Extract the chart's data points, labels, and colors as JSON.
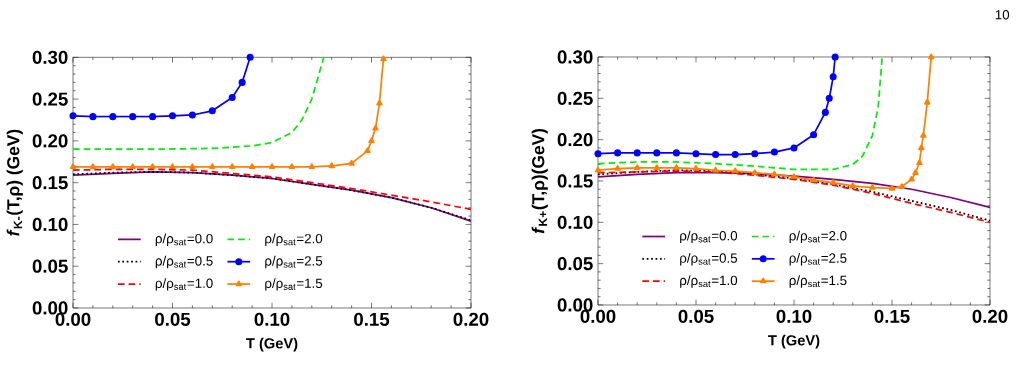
{
  "chart_data": [
    {
      "type": "line",
      "xlabel": "T (GeV)",
      "ylabel": "*f*$_{K-}$(T,ρ) (GeV)",
      "annotations": [
        "10"
      ],
      "xlim": [
        0,
        0.2
      ],
      "ylim": [
        0,
        0.3
      ],
      "xticks": [
        {
          "value": 0,
          "label": "0.00"
        },
        {
          "value": 0.05,
          "label": "0.05"
        },
        {
          "value": 0.1,
          "label": "0.10"
        },
        {
          "value": 0.15,
          "label": "0.15"
        },
        {
          "value": 0.2,
          "label": "0.20"
        }
      ],
      "yticks": [
        {
          "value": 0,
          "label": "0.00"
        },
        {
          "value": 0.05,
          "label": "0.05"
        },
        {
          "value": 0.1,
          "label": "0.10"
        },
        {
          "value": 0.15,
          "label": "0.15"
        },
        {
          "value": 0.2,
          "label": "0.20"
        },
        {
          "value": 0.25,
          "label": "0.25"
        },
        {
          "value": 0.3,
          "label": "0.30"
        }
      ],
      "legend": "bottom left",
      "series": [
        {
          "name": "ρ/ρ$_{sat}$=0.0",
          "color": "#800080",
          "line_style": "solid",
          "marker": "none",
          "x": [
            0,
            0.02,
            0.04,
            0.06,
            0.08,
            0.1,
            0.12,
            0.14,
            0.16,
            0.18,
            0.2
          ],
          "values": [
            0.159,
            0.161,
            0.163,
            0.162,
            0.159,
            0.155,
            0.148,
            0.141,
            0.132,
            0.12,
            0.104
          ]
        },
        {
          "name": "ρ/ρ$_{sat}$=0.5",
          "color": "#000000",
          "line_style": "dotted",
          "marker": "none",
          "x": [
            0,
            0.02,
            0.04,
            0.06,
            0.08,
            0.1,
            0.12,
            0.14,
            0.16,
            0.18,
            0.2
          ],
          "values": [
            0.16,
            0.162,
            0.163,
            0.162,
            0.159,
            0.155,
            0.148,
            0.141,
            0.132,
            0.12,
            0.105
          ]
        },
        {
          "name": "ρ/ρ$_{sat}$=1.0",
          "color": "#ff0000",
          "line_style": "dashed",
          "marker": "none",
          "x": [
            0,
            0.02,
            0.04,
            0.06,
            0.08,
            0.1,
            0.12,
            0.14,
            0.16,
            0.18,
            0.2
          ],
          "values": [
            0.165,
            0.166,
            0.166,
            0.165,
            0.161,
            0.157,
            0.15,
            0.143,
            0.135,
            0.127,
            0.118
          ]
        },
        {
          "name": "ρ/ρ$_{sat}$=1.5",
          "color": "#ff8000",
          "line_style": "solid",
          "marker": "triangle",
          "x": [
            0,
            0.01,
            0.02,
            0.03,
            0.04,
            0.05,
            0.06,
            0.07,
            0.08,
            0.09,
            0.1,
            0.11,
            0.12,
            0.13,
            0.14,
            0.148,
            0.15,
            0.152,
            0.154,
            0.156
          ],
          "values": [
            0.169,
            0.169,
            0.169,
            0.169,
            0.169,
            0.169,
            0.169,
            0.169,
            0.169,
            0.169,
            0.169,
            0.169,
            0.169,
            0.17,
            0.173,
            0.188,
            0.2,
            0.215,
            0.245,
            0.298
          ]
        },
        {
          "name": "ρ/ρ$_{sat}$=2.0",
          "color": "#00ee00",
          "line_style": "dashed",
          "marker": "none",
          "x": [
            0,
            0.04,
            0.07,
            0.09,
            0.1,
            0.11,
            0.115,
            0.12,
            0.123,
            0.126
          ],
          "values": [
            0.19,
            0.19,
            0.191,
            0.194,
            0.198,
            0.21,
            0.225,
            0.25,
            0.275,
            0.3
          ]
        },
        {
          "name": "ρ/ρ$_{sat}$=2.5",
          "color": "#0000ff",
          "line_style": "solid",
          "marker": "circle",
          "x": [
            0,
            0.01,
            0.02,
            0.03,
            0.04,
            0.05,
            0.06,
            0.07,
            0.08,
            0.085,
            0.089
          ],
          "values": [
            0.23,
            0.229,
            0.229,
            0.229,
            0.229,
            0.23,
            0.231,
            0.236,
            0.252,
            0.27,
            0.3
          ]
        }
      ]
    },
    {
      "type": "line",
      "xlabel": "T (GeV)",
      "ylabel": "*f*$_{K+}$(T,ρ)(GeV)",
      "xlim": [
        0,
        0.2
      ],
      "ylim": [
        0,
        0.3
      ],
      "xticks": [
        {
          "value": 0,
          "label": "0.00"
        },
        {
          "value": 0.05,
          "label": "0.05"
        },
        {
          "value": 0.1,
          "label": "0.10"
        },
        {
          "value": 0.15,
          "label": "0.15"
        },
        {
          "value": 0.2,
          "label": "0.20"
        }
      ],
      "yticks": [
        {
          "value": 0,
          "label": "0.00"
        },
        {
          "value": 0.05,
          "label": "0.05"
        },
        {
          "value": 0.1,
          "label": "0.10"
        },
        {
          "value": 0.15,
          "label": "0.15"
        },
        {
          "value": 0.2,
          "label": "0.20"
        },
        {
          "value": 0.25,
          "label": "0.25"
        },
        {
          "value": 0.3,
          "label": "0.30"
        }
      ],
      "legend": "bottom left",
      "series": [
        {
          "name": "ρ/ρ$_{sat}$=0.0",
          "color": "#800080",
          "line_style": "solid",
          "marker": "none",
          "x": [
            0,
            0.02,
            0.04,
            0.06,
            0.08,
            0.1,
            0.12,
            0.14,
            0.16,
            0.18,
            0.2
          ],
          "values": [
            0.155,
            0.158,
            0.16,
            0.16,
            0.159,
            0.156,
            0.152,
            0.147,
            0.14,
            0.13,
            0.118
          ]
        },
        {
          "name": "ρ/ρ$_{sat}$=0.5",
          "color": "#000000",
          "line_style": "dotted",
          "marker": "none",
          "x": [
            0,
            0.02,
            0.04,
            0.06,
            0.08,
            0.1,
            0.12,
            0.14,
            0.16,
            0.18,
            0.2
          ],
          "values": [
            0.158,
            0.161,
            0.163,
            0.162,
            0.158,
            0.153,
            0.146,
            0.137,
            0.126,
            0.115,
            0.102
          ]
        },
        {
          "name": "ρ/ρ$_{sat}$=1.0",
          "color": "#ff0000",
          "line_style": "dashed",
          "marker": "none",
          "x": [
            0,
            0.02,
            0.04,
            0.06,
            0.08,
            0.1,
            0.12,
            0.14,
            0.16,
            0.18,
            0.2
          ],
          "values": [
            0.16,
            0.161,
            0.162,
            0.161,
            0.157,
            0.152,
            0.145,
            0.135,
            0.123,
            0.112,
            0.1
          ]
        },
        {
          "name": "ρ/ρ$_{sat}$=1.5",
          "color": "#ff8000",
          "line_style": "solid",
          "marker": "triangle",
          "x": [
            0,
            0.01,
            0.02,
            0.03,
            0.04,
            0.05,
            0.06,
            0.07,
            0.08,
            0.09,
            0.1,
            0.11,
            0.12,
            0.13,
            0.14,
            0.15,
            0.155,
            0.16,
            0.162,
            0.164,
            0.165,
            0.166,
            0.168,
            0.17
          ],
          "values": [
            0.163,
            0.165,
            0.166,
            0.166,
            0.166,
            0.165,
            0.163,
            0.162,
            0.16,
            0.158,
            0.155,
            0.151,
            0.148,
            0.144,
            0.142,
            0.141,
            0.143,
            0.152,
            0.16,
            0.172,
            0.19,
            0.205,
            0.245,
            0.3
          ]
        },
        {
          "name": "ρ/ρ$_{sat}$=2.0",
          "color": "#00ee00",
          "line_style": "dashed",
          "marker": "none",
          "x": [
            0,
            0.02,
            0.04,
            0.06,
            0.08,
            0.1,
            0.12,
            0.13,
            0.135,
            0.14,
            0.143,
            0.145
          ],
          "values": [
            0.171,
            0.173,
            0.173,
            0.171,
            0.168,
            0.164,
            0.164,
            0.17,
            0.18,
            0.205,
            0.24,
            0.3
          ]
        },
        {
          "name": "ρ/ρ$_{sat}$=2.5",
          "color": "#0000ff",
          "line_style": "solid",
          "marker": "circle",
          "x": [
            0,
            0.01,
            0.02,
            0.03,
            0.04,
            0.05,
            0.06,
            0.07,
            0.08,
            0.09,
            0.1,
            0.11,
            0.116,
            0.118,
            0.12,
            0.121
          ],
          "values": [
            0.183,
            0.184,
            0.184,
            0.184,
            0.184,
            0.183,
            0.182,
            0.182,
            0.183,
            0.185,
            0.19,
            0.206,
            0.233,
            0.25,
            0.276,
            0.3
          ]
        }
      ]
    }
  ]
}
